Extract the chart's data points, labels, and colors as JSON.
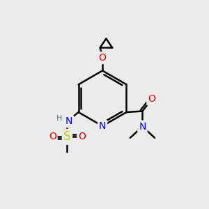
{
  "bg_color": "#ebebeb",
  "atom_colors": {
    "C": "#000000",
    "N": "#0000ee",
    "O": "#ee0000",
    "S": "#cccc00",
    "H": "#607080"
  },
  "bond_color": "#000000",
  "bond_width": 1.8,
  "font_size": 10,
  "fig_width": 3.0,
  "fig_height": 3.0
}
